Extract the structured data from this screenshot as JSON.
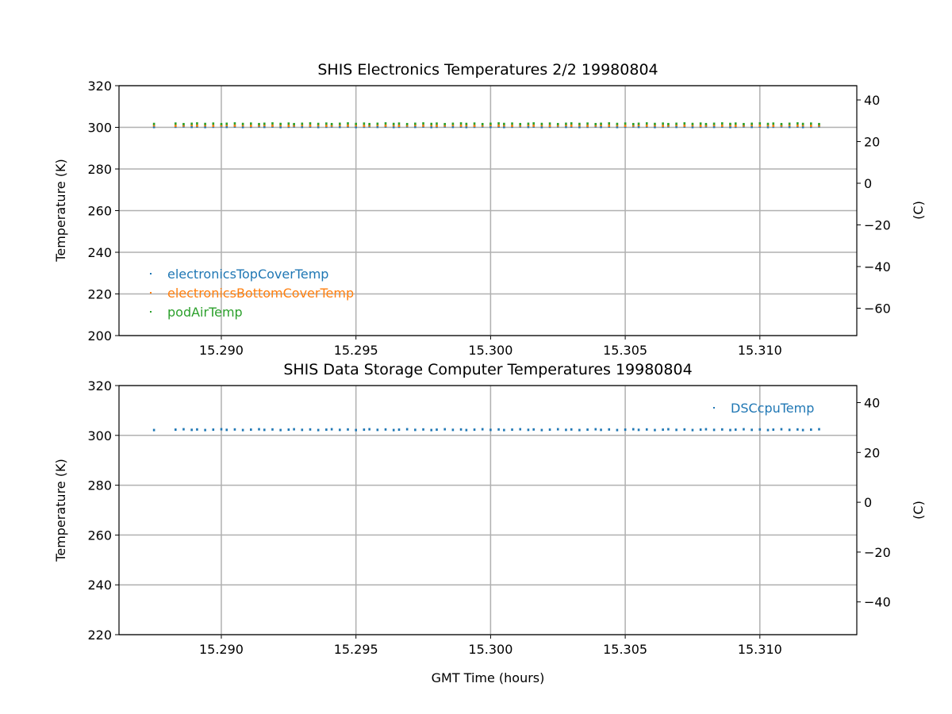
{
  "chart_data": [
    {
      "type": "scatter",
      "title": "SHIS Electronics Temperatures 2/2 19980804",
      "xlabel": "",
      "ylabel": "Temperature (K)",
      "y2label": "(C)",
      "xlim": [
        15.2862,
        15.3136
      ],
      "ylim": [
        200,
        320
      ],
      "y2lim": [
        -73.15,
        46.85
      ],
      "xticks": [
        "15.290",
        "15.295",
        "15.300",
        "15.305",
        "15.310"
      ],
      "yticks": [
        "200",
        "220",
        "240",
        "260",
        "280",
        "300",
        "320"
      ],
      "y2ticks": [
        "−60",
        "−40",
        "−20",
        "0",
        "20",
        "40"
      ],
      "grid": true,
      "legend_position": "lower-left",
      "series": [
        {
          "name": "electronicsTopCoverTemp",
          "color": "#1f77b4",
          "value": 300.3
        },
        {
          "name": "electronicsBottomCoverTemp",
          "color": "#ff7f0e",
          "value": 300.9
        },
        {
          "name": "podAirTemp",
          "color": "#2ca02c",
          "value": 301.7
        }
      ]
    },
    {
      "type": "scatter",
      "title": "SHIS Data Storage Computer Temperatures 19980804",
      "xlabel": "GMT Time (hours)",
      "ylabel": "Temperature (K)",
      "y2label": "(C)",
      "xlim": [
        15.2862,
        15.3136
      ],
      "ylim": [
        220,
        320
      ],
      "y2lim": [
        -53.15,
        46.85
      ],
      "xticks": [
        "15.290",
        "15.295",
        "15.300",
        "15.305",
        "15.310"
      ],
      "yticks": [
        "220",
        "240",
        "260",
        "280",
        "300",
        "320"
      ],
      "y2ticks": [
        "−40",
        "−20",
        "0",
        "20",
        "40"
      ],
      "grid": true,
      "legend_position": "upper-right",
      "series": [
        {
          "name": "DSCcpuTemp",
          "color": "#1f77b4",
          "value": 302.3
        }
      ]
    }
  ],
  "x": [
    15.2875,
    15.2883,
    15.2886,
    15.2889,
    15.2891,
    15.2894,
    15.2897,
    15.29,
    15.2902,
    15.2905,
    15.2908,
    15.2911,
    15.2914,
    15.2916,
    15.2919,
    15.2922,
    15.2925,
    15.2927,
    15.293,
    15.2933,
    15.2936,
    15.2939,
    15.2941,
    15.2944,
    15.2947,
    15.295,
    15.2953,
    15.2955,
    15.2958,
    15.2961,
    15.2964,
    15.2966,
    15.2969,
    15.2972,
    15.2975,
    15.2978,
    15.298,
    15.2983,
    15.2986,
    15.2989,
    15.2991,
    15.2994,
    15.2997,
    15.3,
    15.3003,
    15.3005,
    15.3008,
    15.3011,
    15.3014,
    15.3016,
    15.3019,
    15.3022,
    15.3025,
    15.3028,
    15.303,
    15.3033,
    15.3036,
    15.3039,
    15.3041,
    15.3044,
    15.3047,
    15.305,
    15.3053,
    15.3055,
    15.3058,
    15.3061,
    15.3064,
    15.3066,
    15.3069,
    15.3072,
    15.3075,
    15.3078,
    15.308,
    15.3083,
    15.3086,
    15.3089,
    15.3091,
    15.3094,
    15.3097,
    15.31,
    15.3103,
    15.3105,
    15.3108,
    15.3111,
    15.3114,
    15.3116,
    15.3119,
    15.3122
  ]
}
